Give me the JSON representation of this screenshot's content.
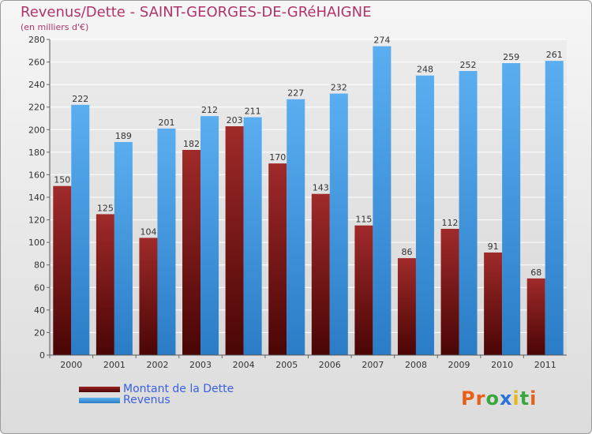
{
  "chart_data": {
    "type": "bar",
    "title": "Revenus/Dette - SAINT-GEORGES-DE-GRéHAIGNE",
    "subtitle": "(en milliers d'€)",
    "categories": [
      "2000",
      "2001",
      "2002",
      "2003",
      "2004",
      "2005",
      "2006",
      "2007",
      "2008",
      "2009",
      "2010",
      "2011"
    ],
    "series": [
      {
        "name": "Montant de la Dette",
        "color": "#7a1a1a",
        "values": [
          150,
          125,
          104,
          182,
          203,
          170,
          143,
          115,
          86,
          112,
          91,
          68
        ]
      },
      {
        "name": "Revenus",
        "color": "#3d97e0",
        "values": [
          222,
          189,
          201,
          212,
          211,
          227,
          232,
          274,
          248,
          252,
          259,
          261
        ]
      }
    ],
    "yticks": [
      0,
      20,
      40,
      60,
      80,
      100,
      120,
      140,
      160,
      180,
      200,
      220,
      240,
      260,
      280
    ],
    "ylim": [
      0,
      280
    ],
    "grid": true,
    "legend_position": "bottom-left"
  },
  "logo": {
    "letters": [
      "P",
      "r",
      "o",
      "x",
      "i",
      "t",
      "i"
    ],
    "colors": [
      "#e85f1a",
      "#e85f1a",
      "#3aa640",
      "#2b74d6",
      "#e8b81a",
      "#3aa640",
      "#e85f1a"
    ]
  }
}
